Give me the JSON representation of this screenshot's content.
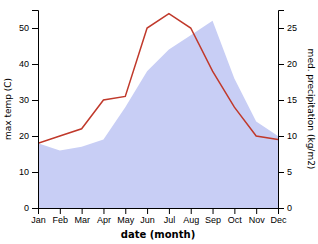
{
  "chart_data": {
    "type": "line",
    "xlabel": "date (month)",
    "ylabel": "max temp (C)",
    "y2label": "med. precipitation (kg/m2)",
    "categories": [
      "Jan",
      "Feb",
      "Mar",
      "Apr",
      "May",
      "Jun",
      "Jul",
      "Aug",
      "Sep",
      "Oct",
      "Nov",
      "Dec"
    ],
    "series": [
      {
        "type": "area",
        "axis": "y2",
        "color": "#c8cef5",
        "values": [
          9,
          8,
          8.5,
          9.5,
          14,
          19,
          22,
          24,
          26,
          18,
          12,
          10
        ]
      },
      {
        "type": "line",
        "color": "#c0392b",
        "values": [
          18,
          20,
          22,
          30,
          31,
          50,
          54,
          50,
          38,
          28,
          20,
          19
        ]
      }
    ],
    "ylim": [
      0,
      55
    ],
    "yticks": [
      0,
      10,
      20,
      30,
      40,
      50
    ],
    "y2lim": [
      0,
      27.5
    ],
    "y2ticks": [
      0,
      5,
      10,
      15,
      20,
      25
    ],
    "grid": false
  }
}
